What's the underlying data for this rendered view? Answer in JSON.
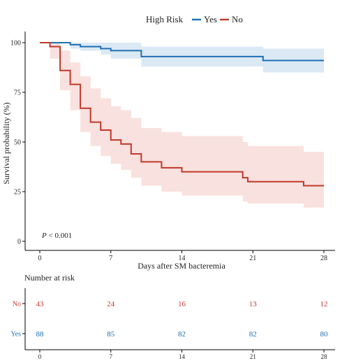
{
  "chart_data": {
    "type": "line",
    "subtype": "kaplan-meier survival curve with confidence bands and risk table",
    "ylabel": "Survival probability (%)",
    "xlabel": "Days after SM bacteremia",
    "xlim": [
      0,
      28
    ],
    "ylim": [
      0,
      100
    ],
    "x_ticks": [
      0,
      7,
      14,
      21,
      28
    ],
    "y_ticks": [
      0,
      25,
      50,
      75,
      100
    ],
    "grid": false,
    "legend": {
      "title": "High Risk",
      "placement": "top-center",
      "entries": [
        {
          "label": "Yes",
          "color": "#1f6fb2"
        },
        {
          "label": "No",
          "color": "#c0392b"
        }
      ]
    },
    "annotation": {
      "p_label": "P",
      "p_text": " < 0.001"
    },
    "series": [
      {
        "name": "Yes",
        "color": "#1f6fb2",
        "band_color": "#dbe9f5",
        "steps": [
          [
            0,
            100
          ],
          [
            3,
            99
          ],
          [
            4,
            98
          ],
          [
            6,
            97
          ],
          [
            7,
            96
          ],
          [
            10,
            93
          ],
          [
            22,
            91
          ],
          [
            28,
            91
          ]
        ],
        "lower": [
          [
            0,
            100
          ],
          [
            3,
            97
          ],
          [
            4,
            96
          ],
          [
            6,
            94
          ],
          [
            7,
            92
          ],
          [
            10,
            88
          ],
          [
            22,
            85
          ],
          [
            28,
            85
          ]
        ],
        "upper": [
          [
            0,
            100
          ],
          [
            3,
            100
          ],
          [
            4,
            100
          ],
          [
            6,
            100
          ],
          [
            7,
            100
          ],
          [
            10,
            98
          ],
          [
            22,
            97
          ],
          [
            28,
            97
          ]
        ]
      },
      {
        "name": "No",
        "color": "#c0392b",
        "band_color": "#f8e1de",
        "steps": [
          [
            0,
            100
          ],
          [
            1,
            98
          ],
          [
            2,
            86
          ],
          [
            3,
            79
          ],
          [
            4,
            67
          ],
          [
            5,
            60
          ],
          [
            6,
            56
          ],
          [
            7,
            51
          ],
          [
            8,
            49
          ],
          [
            9,
            44
          ],
          [
            10,
            40
          ],
          [
            12,
            37
          ],
          [
            14,
            35
          ],
          [
            20,
            32
          ],
          [
            20.5,
            30
          ],
          [
            26,
            28
          ],
          [
            28,
            28
          ]
        ],
        "lower": [
          [
            0,
            100
          ],
          [
            1,
            92
          ],
          [
            2,
            76
          ],
          [
            3,
            66
          ],
          [
            4,
            55
          ],
          [
            5,
            48
          ],
          [
            6,
            43
          ],
          [
            7,
            39
          ],
          [
            8,
            36
          ],
          [
            9,
            32
          ],
          [
            10,
            28
          ],
          [
            12,
            25
          ],
          [
            14,
            23
          ],
          [
            20,
            20
          ],
          [
            20.5,
            19
          ],
          [
            26,
            17
          ],
          [
            28,
            17
          ]
        ],
        "upper": [
          [
            0,
            100
          ],
          [
            1,
            100
          ],
          [
            2,
            96
          ],
          [
            3,
            90
          ],
          [
            4,
            83
          ],
          [
            5,
            77
          ],
          [
            6,
            72
          ],
          [
            7,
            68
          ],
          [
            8,
            66
          ],
          [
            9,
            62
          ],
          [
            10,
            57
          ],
          [
            12,
            55
          ],
          [
            14,
            53
          ],
          [
            20,
            50
          ],
          [
            20.5,
            48
          ],
          [
            26,
            45
          ],
          [
            28,
            45
          ]
        ]
      }
    ],
    "risk_table": {
      "title": "Number at risk",
      "times": [
        0,
        7,
        14,
        21,
        28
      ],
      "rows": [
        {
          "label": "No",
          "color": "#c0392b",
          "values": [
            43,
            24,
            16,
            13,
            12
          ]
        },
        {
          "label": "Yes",
          "color": "#1f6fb2",
          "values": [
            88,
            85,
            82,
            82,
            80
          ]
        }
      ]
    }
  }
}
